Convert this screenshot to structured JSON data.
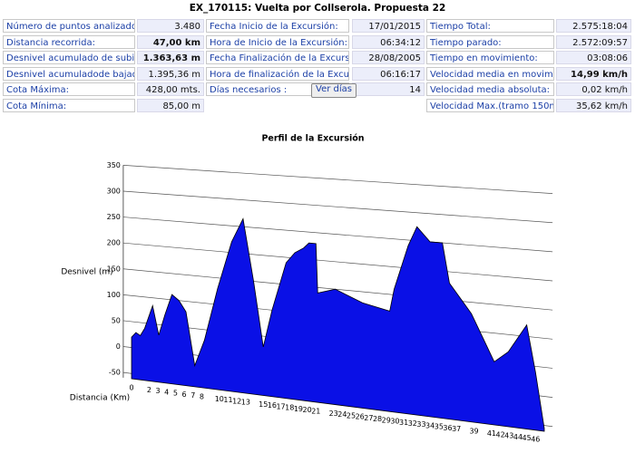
{
  "header": {
    "title": "EX_170115: Vuelta por Collserola. Propuesta 22"
  },
  "stats": {
    "rows": [
      [
        {
          "label": "Número de puntos analizados:",
          "value": "3.480"
        },
        {
          "label": "Fecha Inicio  de la Excursión:",
          "value": "17/01/2015"
        },
        {
          "label": "Tiempo Total:",
          "value": "2.575:18:04"
        }
      ],
      [
        {
          "label": "Distancia recorrida:",
          "value": "47,00 km",
          "bold": true
        },
        {
          "label": "Hora de Inicio de la Excursión:",
          "value": "06:34:12"
        },
        {
          "label": "Tiempo parado:",
          "value": "2.572:09:57"
        }
      ],
      [
        {
          "label": "Desnivel acumulado de subida:",
          "value": "1.363,63 m",
          "bold": true
        },
        {
          "label": "Fecha Finalización de la Excursión:",
          "value": "28/08/2005"
        },
        {
          "label": "Tiempo en movimiento:",
          "value": "03:08:06"
        }
      ],
      [
        {
          "label": "Desnivel acumuladode bajada:",
          "value": "1.395,36 m"
        },
        {
          "label": "Hora de finalización de la Excursión:",
          "value": "06:16:17"
        },
        {
          "label": "Velocidad media en movimiento:",
          "value": "14,99 km/h",
          "bold": true
        }
      ],
      [
        {
          "label": "Cota Máxima:",
          "value": "428,00 mts."
        },
        {
          "label": "Días necesarios :",
          "button": "Ver días",
          "value": "14"
        },
        {
          "label": "Velocidad media absoluta:",
          "value": "0,02 km/h"
        }
      ],
      [
        {
          "label": "Cota Mínima:",
          "value": "85,00 m"
        },
        null,
        {
          "label": "Velocidad Max.(tramo 150m):",
          "value": "35,62 km/h"
        }
      ]
    ]
  },
  "chart_data": {
    "type": "area",
    "title": "Perfil de la Excursión",
    "x_label": "Distancia (Km)",
    "y_label": "Desnivel (m)",
    "x": [
      0,
      0.5,
      1,
      1.5,
      2.4,
      3.1,
      3.8,
      4.6,
      5.4,
      6.2,
      7.2,
      8.3,
      9.8,
      11.4,
      12.7,
      13.9,
      15,
      16,
      17.6,
      18.6,
      19.6,
      20.2,
      21,
      21.2,
      23.2,
      26.3,
      29.4,
      29.9,
      31.5,
      32.5,
      34,
      35.4,
      36.2,
      37.7,
      38.7,
      40,
      41.3,
      42.9,
      45,
      46,
      47
    ],
    "series": [
      {
        "name": "Desnivel",
        "color": "#0a10e6",
        "values": [
          20,
          30,
          25,
          40,
          85,
          30,
          70,
          110,
          100,
          80,
          -20,
          30,
          130,
          220,
          265,
          150,
          30,
          100,
          190,
          210,
          220,
          230,
          230,
          140,
          150,
          130,
          120,
          160,
          240,
          275,
          250,
          250,
          180,
          150,
          130,
          90,
          50,
          70,
          120,
          40,
          -55
        ]
      }
    ],
    "xlim": [
      0,
      47
    ],
    "ylim": [
      -60,
      350
    ],
    "xticks": [
      0,
      2,
      3,
      4,
      5,
      6,
      7,
      8,
      10,
      11,
      12,
      13,
      15,
      16,
      17,
      18,
      19,
      20,
      21,
      23,
      24,
      25,
      26,
      27,
      28,
      29,
      30,
      31,
      32,
      33,
      34,
      35,
      36,
      37,
      39,
      41,
      42,
      43,
      44,
      45,
      46
    ],
    "yticks": [
      -50,
      0,
      50,
      100,
      150,
      200,
      250,
      300,
      350
    ],
    "grid": true
  }
}
